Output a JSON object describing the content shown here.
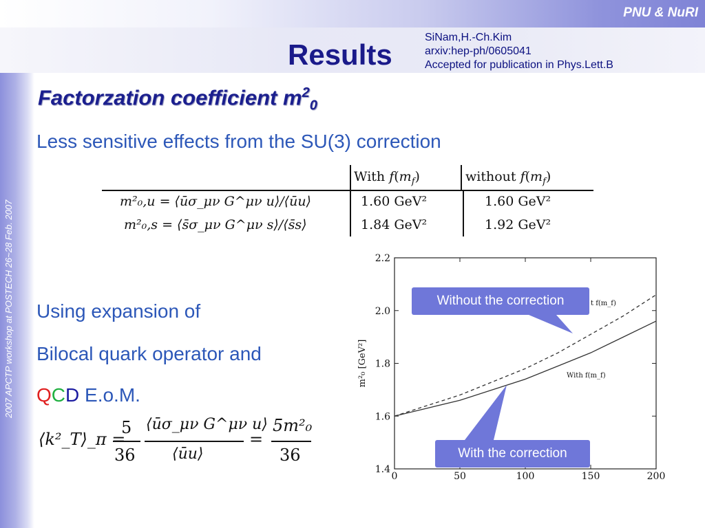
{
  "header": {
    "brand": "PNU & NuRI",
    "title": "Results",
    "reference": [
      "SiNam,H.-Ch.Kim",
      "arxiv:hep-ph/0605041",
      "Accepted for publication in Phys.Lett.B"
    ]
  },
  "sidebar": {
    "vertical_text": "2007 APCTP workshop at POSTECH  26~28 Feb. 2007"
  },
  "slide": {
    "subtitle_main": "Factorzation coefficient m",
    "subtitle_sup": "2",
    "subtitle_sub": "0",
    "line1": "Less sensitive effects from the SU(3) correction",
    "line2": "Using expansion of",
    "line3": "Bilocal quark operator and",
    "qcd_q": "Q",
    "qcd_c": "C",
    "qcd_d": "D",
    "qcd_rest": " E.o.M."
  },
  "table": {
    "headers": [
      "With f(m_f)",
      "without f(m_f)"
    ],
    "header_with": "With",
    "header_without": "without",
    "rows": [
      {
        "label": "m²₀,u = ⟨ūσ_μν G^μν u⟩/⟨ūu⟩",
        "with": "1.60 GeV²",
        "without": "1.60 GeV²"
      },
      {
        "label": "m²₀,s = ⟨s̄σ_μν G^μν s⟩/⟨s̄s⟩",
        "with": "1.84 GeV²",
        "without": "1.92 GeV²"
      }
    ]
  },
  "formula": {
    "lhs": "⟨k²_T⟩_π =",
    "frac1_num": "5",
    "frac1_den": "36",
    "frac2_num": "⟨ūσ_μν G^μν u⟩",
    "frac2_den": "⟨ūu⟩",
    "eq": "=",
    "frac3_num": "5m²₀",
    "frac3_den": "36"
  },
  "colors": {
    "accent": "#1b1f8e",
    "text_blue": "#2c57b8",
    "callout": "#6f77d9",
    "q_red": "#e02020",
    "c_green": "#20b040",
    "d_blue": "#1a1aa0"
  },
  "chart_data": {
    "type": "line",
    "ylabel": "m²₀ [GeV²]",
    "xlim": [
      0,
      200
    ],
    "ylim": [
      1.4,
      2.2
    ],
    "xticks": [
      0,
      50,
      100,
      150,
      200
    ],
    "yticks": [
      1.4,
      1.6,
      1.8,
      2.0,
      2.2
    ],
    "xtick_labels": [
      "0",
      "50",
      "100",
      "150",
      "200"
    ],
    "ytick_labels": [
      "1.4",
      "1.6",
      "1.8",
      "2.0",
      "2.2"
    ],
    "series": [
      {
        "name": "With f(m_f)",
        "style": "solid",
        "x": [
          0,
          25,
          50,
          75,
          100,
          125,
          150,
          175,
          200
        ],
        "y": [
          1.6,
          1.63,
          1.66,
          1.7,
          1.74,
          1.79,
          1.84,
          1.9,
          1.96
        ]
      },
      {
        "name": "without f(m_f)",
        "style": "dashed",
        "x": [
          0,
          25,
          50,
          75,
          100,
          125,
          150,
          175,
          200
        ],
        "y": [
          1.6,
          1.64,
          1.68,
          1.73,
          1.78,
          1.84,
          1.91,
          1.98,
          2.06
        ]
      }
    ],
    "in_plot_labels": [
      "With f(m_f)",
      "t f(m_f)"
    ],
    "callouts": [
      "Without the correction",
      "With the correction"
    ]
  }
}
